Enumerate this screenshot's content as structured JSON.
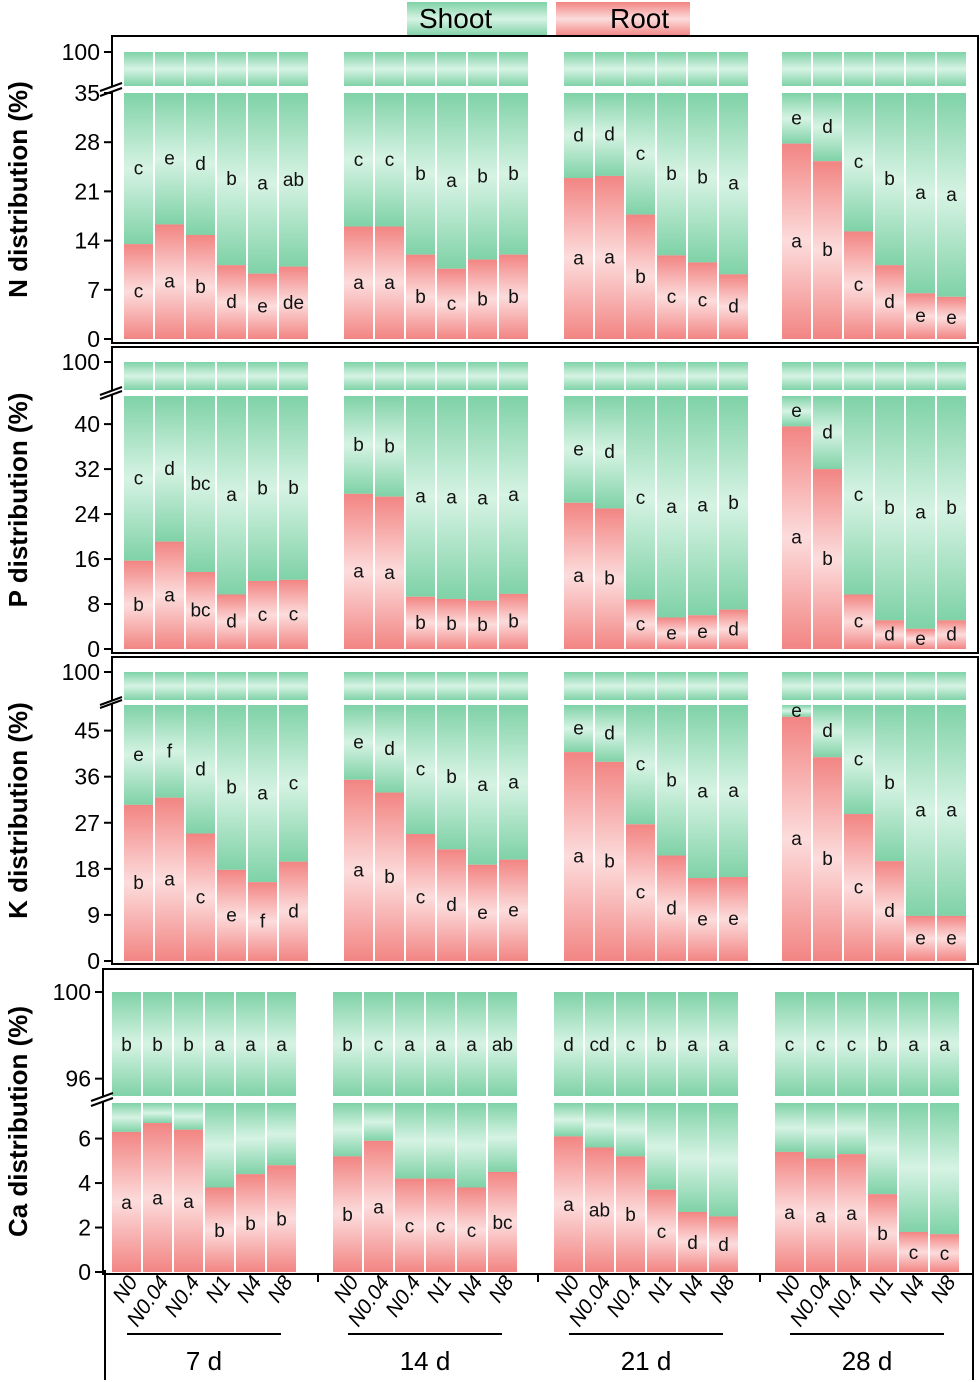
{
  "chart_data": [
    {
      "type": "bar",
      "stacked": true,
      "nutrient": "N",
      "ylabel": "N distribution (%)",
      "yticks_lower": [
        0,
        7,
        14,
        21,
        28,
        35
      ],
      "yticks_upper": [
        100
      ],
      "ylim_lower": [
        0,
        35
      ],
      "ylim_upper": [
        98,
        100
      ],
      "groups": [
        {
          "time": "7 d",
          "root": [
            13.5,
            16.3,
            14.8,
            10.5,
            9.3,
            10.3
          ],
          "root_letters": [
            "c",
            "a",
            "b",
            "d",
            "e",
            "de"
          ],
          "shoot_letters": [
            "c",
            "e",
            "d",
            "b",
            "a",
            "ab"
          ]
        },
        {
          "time": "14 d",
          "root": [
            16.0,
            16.0,
            12.0,
            10.0,
            11.3,
            12.0
          ],
          "root_letters": [
            "a",
            "a",
            "b",
            "c",
            "b",
            "b"
          ],
          "shoot_letters": [
            "c",
            "c",
            "b",
            "a",
            "b",
            "b"
          ]
        },
        {
          "time": "21 d",
          "root": [
            22.9,
            23.2,
            17.7,
            11.9,
            10.9,
            9.2
          ],
          "root_letters": [
            "a",
            "a",
            "b",
            "c",
            "c",
            "d"
          ],
          "shoot_letters": [
            "d",
            "d",
            "c",
            "b",
            "b",
            "a"
          ]
        },
        {
          "time": "28 d",
          "root": [
            27.8,
            25.3,
            15.3,
            10.5,
            6.5,
            6.0
          ],
          "root_letters": [
            "a",
            "b",
            "c",
            "d",
            "e",
            "e"
          ],
          "shoot_letters": [
            "e",
            "d",
            "c",
            "b",
            "a",
            "a"
          ]
        }
      ]
    },
    {
      "type": "bar",
      "stacked": true,
      "nutrient": "P",
      "ylabel": "P distribution (%)",
      "yticks_lower": [
        0,
        8,
        16,
        24,
        32,
        40
      ],
      "yticks_upper": [
        100
      ],
      "ylim_lower": [
        0,
        45
      ],
      "ylim_upper": [
        98,
        100
      ],
      "groups": [
        {
          "time": "7 d",
          "root": [
            15.7,
            19.1,
            13.7,
            9.7,
            12.1,
            12.3
          ],
          "root_letters": [
            "b",
            "a",
            "bc",
            "d",
            "c",
            "c"
          ],
          "shoot_letters": [
            "c",
            "d",
            "bc",
            "a",
            "b",
            "b"
          ]
        },
        {
          "time": "14 d",
          "root": [
            27.6,
            27.1,
            9.3,
            8.9,
            8.6,
            9.8
          ],
          "root_letters": [
            "a",
            "a",
            "b",
            "b",
            "b",
            "b"
          ],
          "shoot_letters": [
            "b",
            "b",
            "a",
            "a",
            "a",
            "a"
          ]
        },
        {
          "time": "21 d",
          "root": [
            26.0,
            25.0,
            8.8,
            5.6,
            6.0,
            7.0
          ],
          "root_letters": [
            "a",
            "b",
            "c",
            "e",
            "e",
            "d"
          ],
          "shoot_letters": [
            "e",
            "d",
            "c",
            "a",
            "a",
            "b"
          ]
        },
        {
          "time": "28 d",
          "root": [
            39.6,
            32.0,
            9.7,
            5.1,
            3.6,
            5.1
          ],
          "root_letters": [
            "a",
            "b",
            "c",
            "d",
            "e",
            "d"
          ],
          "shoot_letters": [
            "e",
            "d",
            "c",
            "b",
            "a",
            "b"
          ]
        }
      ]
    },
    {
      "type": "bar",
      "stacked": true,
      "nutrient": "K",
      "ylabel": "K distribution (%)",
      "yticks_lower": [
        0,
        9,
        18,
        27,
        36,
        45
      ],
      "yticks_upper": [
        100
      ],
      "ylim_lower": [
        0,
        50
      ],
      "ylim_upper": [
        98,
        100
      ],
      "groups": [
        {
          "time": "7 d",
          "root": [
            30.5,
            31.9,
            24.9,
            17.8,
            15.4,
            19.4
          ],
          "root_letters": [
            "b",
            "a",
            "c",
            "e",
            "f",
            "d"
          ],
          "shoot_letters": [
            "e",
            "f",
            "d",
            "b",
            "a",
            "c"
          ]
        },
        {
          "time": "14 d",
          "root": [
            35.4,
            32.9,
            24.8,
            21.8,
            18.8,
            19.8
          ],
          "root_letters": [
            "a",
            "b",
            "c",
            "d",
            "e",
            "e"
          ],
          "shoot_letters": [
            "e",
            "d",
            "c",
            "b",
            "a",
            "a"
          ]
        },
        {
          "time": "21 d",
          "root": [
            40.8,
            38.9,
            26.7,
            20.6,
            16.2,
            16.4
          ],
          "root_letters": [
            "a",
            "b",
            "c",
            "d",
            "e",
            "e"
          ],
          "shoot_letters": [
            "e",
            "d",
            "c",
            "b",
            "a",
            "a"
          ]
        },
        {
          "time": "28 d",
          "root": [
            47.7,
            39.8,
            28.7,
            19.5,
            8.8,
            8.8
          ],
          "root_letters": [
            "a",
            "b",
            "c",
            "d",
            "e",
            "e"
          ],
          "shoot_letters": [
            "e",
            "d",
            "c",
            "b",
            "a",
            "a"
          ]
        }
      ]
    },
    {
      "type": "bar",
      "stacked": true,
      "nutrient": "Ca",
      "ylabel": "Ca distribution (%)",
      "yticks_lower": [
        0,
        2,
        4,
        6
      ],
      "yticks_upper": [
        96,
        100
      ],
      "ylim_lower": [
        0,
        7.6
      ],
      "ylim_upper": [
        95.2,
        100
      ],
      "groups": [
        {
          "time": "7 d",
          "root": [
            6.3,
            6.7,
            6.4,
            3.8,
            4.4,
            4.8
          ],
          "root_letters": [
            "a",
            "a",
            "a",
            "b",
            "b",
            "b"
          ],
          "shoot_letters": [
            "b",
            "b",
            "b",
            "a",
            "a",
            "a"
          ]
        },
        {
          "time": "14 d",
          "root": [
            5.2,
            5.9,
            4.2,
            4.2,
            3.8,
            4.5
          ],
          "root_letters": [
            "b",
            "a",
            "c",
            "c",
            "c",
            "bc"
          ],
          "shoot_letters": [
            "b",
            "c",
            "a",
            "a",
            "a",
            "ab"
          ]
        },
        {
          "time": "21 d",
          "root": [
            6.1,
            5.6,
            5.2,
            3.7,
            2.7,
            2.5
          ],
          "root_letters": [
            "a",
            "ab",
            "b",
            "c",
            "d",
            "d"
          ],
          "shoot_letters": [
            "d",
            "cd",
            "c",
            "b",
            "a",
            "a"
          ]
        },
        {
          "time": "28 d",
          "root": [
            5.4,
            5.1,
            5.3,
            3.5,
            1.8,
            1.7
          ],
          "root_letters": [
            "a",
            "a",
            "a",
            "b",
            "c",
            "c"
          ],
          "shoot_letters": [
            "c",
            "c",
            "c",
            "b",
            "a",
            "a"
          ]
        }
      ]
    }
  ],
  "categories": [
    "N0",
    "N0.04",
    "N0.4",
    "N1",
    "N4",
    "N8"
  ],
  "time_points": [
    "7 d",
    "14 d",
    "21 d",
    "28 d"
  ],
  "legend": [
    {
      "label": "Shoot",
      "color": "#8fd8b1"
    },
    {
      "label": "Root",
      "color": "#f3908f"
    }
  ],
  "colors": {
    "shoot_dark": "#7fd2a7",
    "shoot_light": "#d3f2e1",
    "root_dark": "#f28583",
    "root_light": "#fbd6d6"
  }
}
